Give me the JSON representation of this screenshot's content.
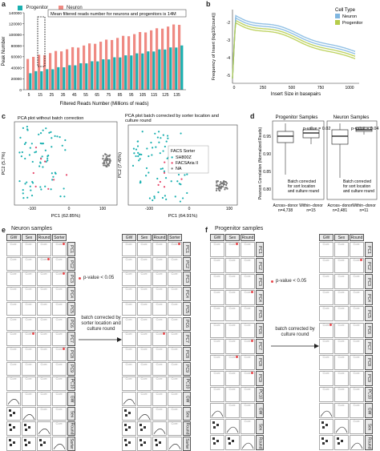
{
  "panels": {
    "a": "a",
    "b": "b",
    "c": "c",
    "d": "d",
    "e": "e",
    "f": "f"
  },
  "panel_a": {
    "legend": [
      "Progenitor",
      "Neuron"
    ],
    "annotation": "Mean filtered reads number for neurons and progenitors is 14M",
    "ylabel": "Peak Number",
    "xlabel": "Filtered Reads Number (Millions of reads)",
    "yticks": [
      "0",
      "20000",
      "40000",
      "60000",
      "80000",
      "100000",
      "120000",
      "140000"
    ],
    "xticks": [
      "5",
      "15",
      "25",
      "35",
      "45",
      "55",
      "65",
      "75",
      "85",
      "95",
      "105",
      "115",
      "125",
      "135"
    ],
    "colors": {
      "progenitor": "#1ab0b0",
      "neuron": "#ef8a83"
    }
  },
  "panel_b": {
    "legend_title": "Cell Type",
    "legend": [
      "Neuron",
      "Progenitor"
    ],
    "ylabel": "Frequency of Insert (log10(count))",
    "xlabel": "Insert Size in basepairs",
    "yticks": [
      "-5",
      "-4",
      "-3",
      "-2"
    ],
    "xticks": [
      "0",
      "250",
      "500",
      "750",
      "1000"
    ],
    "colors": {
      "neuron": "#7fb6e0",
      "progenitor": "#b5cc4a"
    }
  },
  "panel_c": {
    "left_title": "PCA plot without batch correction",
    "right_title": "PCA plot batch corrected by sorter location and culture round",
    "left_xlabel": "PC1 (62.85%)",
    "left_ylabel": "PC2 (5.7%)",
    "right_xlabel": "PC1 (64.91%)",
    "right_ylabel": "PC2 (7.45%)",
    "xticks": [
      "-100",
      "0",
      "100"
    ],
    "yticks": [
      "-50",
      "0",
      "50"
    ],
    "legend_title": "FACS Sorter",
    "legend": [
      "SH800Z",
      "FACSAria II",
      "NA"
    ]
  },
  "panel_d": {
    "left_title": "Progenitor Samples",
    "right_title": "Neuron Samples",
    "ylabel": "Pearson Correlation (Normalized Reads)",
    "pvalue_left": "p-value = 0.02",
    "pvalue_right": "p-value = 0.04",
    "note": "Batch corrected for sort location and culture round",
    "note2": "Batch corrected for sort location and culture round",
    "yticks": [
      "0.80",
      "0.85",
      "0.90",
      "0.95"
    ],
    "left_xticks": [
      "Across−donor\nn=4,738",
      "Within−donor\nn=15"
    ],
    "right_xticks": [
      "Across−donor\nn=2,481",
      "Within−donor\nn=11"
    ]
  },
  "panel_e": {
    "title": "Neuron samples",
    "headers": [
      "GW",
      "Sex",
      "Round",
      "Sorter"
    ],
    "rows": [
      "PC1",
      "PC2",
      "PC3",
      "PC4",
      "PC5",
      "PC6",
      "PC7",
      "PC8",
      "PC9",
      "PC10",
      "GW",
      "Sex",
      "Round",
      "Sorter"
    ],
    "cell_text": "Corr:",
    "pvalue_legend": "p-value < 0.05",
    "arrow_text": "batch corrected by sorter location and culture round"
  },
  "panel_f": {
    "title": "Progenitor samples",
    "headers": [
      "GW",
      "Sex",
      "Round"
    ],
    "rows": [
      "PC1",
      "PC2",
      "PC3",
      "PC4",
      "PC5",
      "PC6",
      "PC7",
      "PC8",
      "PC9",
      "PC10",
      "GW",
      "Sex",
      "Round"
    ],
    "cell_text": "Corr:",
    "pvalue_legend": "p-value < 0.05",
    "arrow_text": "batch corrected by culture round"
  }
}
